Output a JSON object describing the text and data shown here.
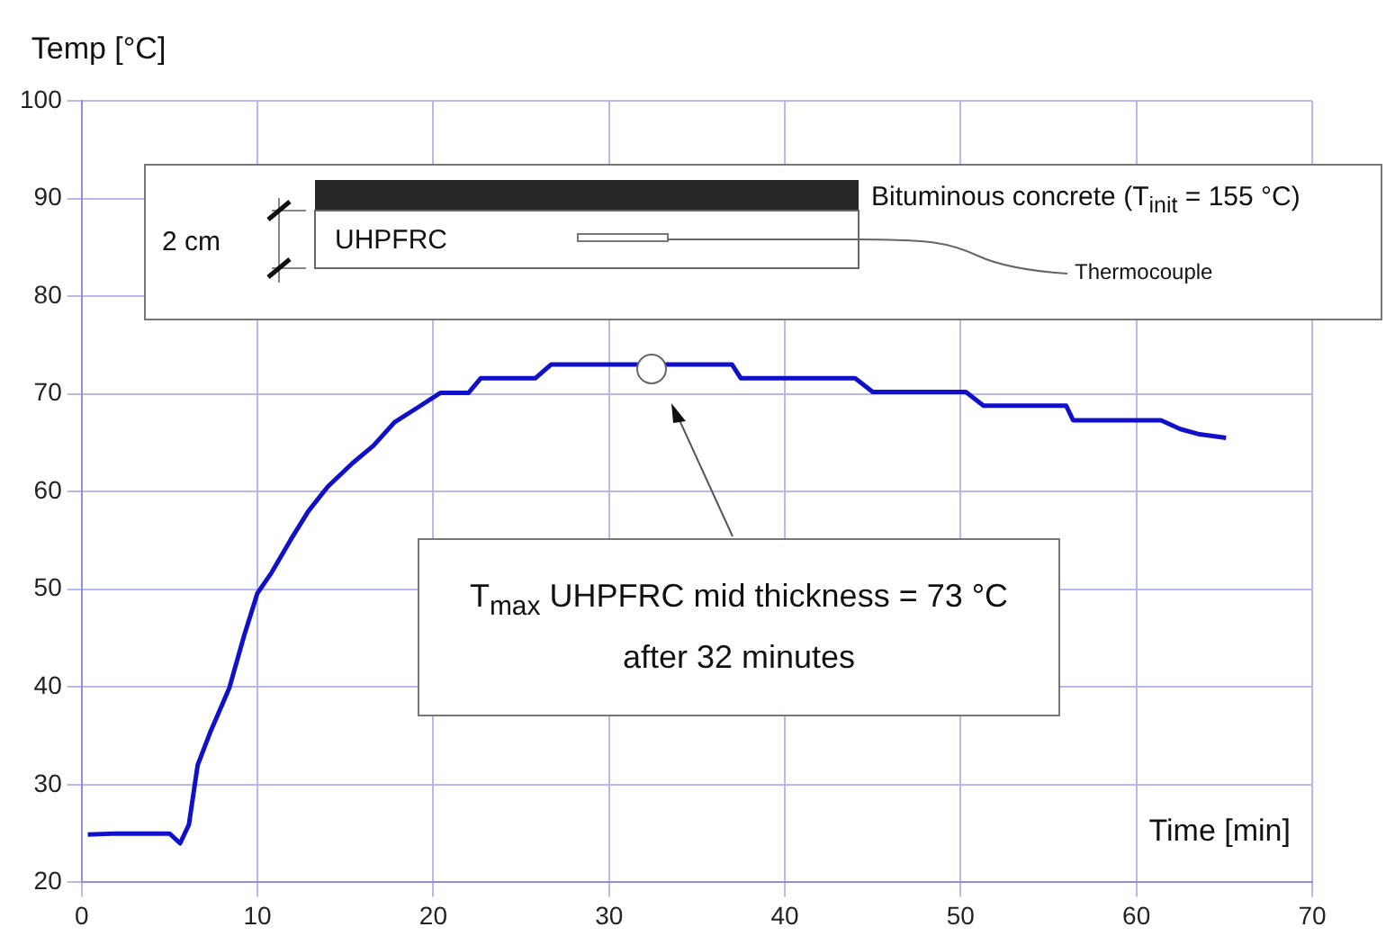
{
  "chart_data": {
    "type": "line",
    "xlabel": "Time [min]",
    "ylabel": "Temp [°C]",
    "x": [
      0.35,
      2,
      5.0,
      5.6,
      6.1,
      6.6,
      7.3,
      8.4,
      9.25,
      10,
      10.8,
      11.9,
      12.9,
      14,
      15.4,
      16.6,
      17.8,
      19.2,
      20.4,
      22,
      22.7,
      25.8,
      26.7,
      37,
      37.5,
      44,
      45,
      50.3,
      51.3,
      56,
      56.4,
      61.4,
      62.5,
      63.5,
      65.1
    ],
    "series": [
      {
        "color": "#1010c8",
        "values": [
          24.9,
          25,
          25,
          24,
          25.9,
          32,
          35.3,
          39.9,
          45.3,
          49.6,
          51.7,
          55.1,
          58,
          60.5,
          62.9,
          64.7,
          67.1,
          68.7,
          70.1,
          70.1,
          71.6,
          71.6,
          73,
          73,
          71.6,
          71.6,
          70.2,
          70.2,
          68.8,
          68.8,
          67.3,
          67.3,
          66.4,
          65.9,
          65.5
        ]
      }
    ],
    "xlim": [
      0,
      70
    ],
    "xticks": [
      0,
      10,
      20,
      30,
      40,
      50,
      60,
      70
    ],
    "ylim": [
      20,
      100
    ],
    "yticks": [
      20,
      30,
      40,
      50,
      60,
      70,
      80,
      90,
      100
    ],
    "grid": true,
    "legend": false,
    "marker": "none",
    "line_style": "solid",
    "annotations": [
      "Bituminous concrete (T$_{init}$ = 155 °C)",
      "UHPFRC",
      "2 cm",
      "Thermocouple",
      "T$_{max}$ UHPFRC mid thickness = 73 °C",
      "after 32 minutes"
    ]
  }
}
